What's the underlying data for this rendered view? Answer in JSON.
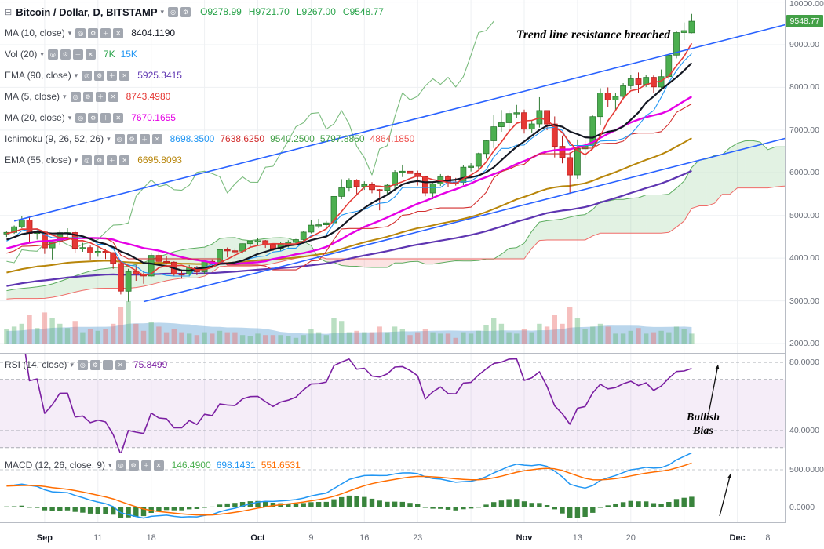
{
  "header": {
    "collapse_icon": "⊟",
    "symbol_title": "Bitcoin / Dollar, D, BITSTAMP",
    "ohlc": {
      "o": "O9278.99",
      "h": "H9721.70",
      "l": "L9267.00",
      "c": "C9548.77"
    },
    "ohlc_color": "#26a248"
  },
  "icons": {
    "dropdown": "▾",
    "box_glyphs": [
      "◎",
      "⚙",
      "＋",
      "✕"
    ]
  },
  "legend_indicators": [
    {
      "label": "MA (10, close)",
      "values": [
        {
          "text": "8404.1190",
          "color": "#131722"
        }
      ]
    },
    {
      "label": "Vol (20)",
      "values": [
        {
          "text": "7K",
          "color": "#26a248"
        },
        {
          "text": "15K",
          "color": "#2196f3"
        }
      ]
    },
    {
      "label": "EMA (90, close)",
      "values": [
        {
          "text": "5925.3415",
          "color": "#5e35b1"
        }
      ]
    },
    {
      "label": "MA (5, close)",
      "values": [
        {
          "text": "8743.4980",
          "color": "#e53935"
        }
      ]
    },
    {
      "label": "MA (20, close)",
      "values": [
        {
          "text": "7670.1655",
          "color": "#e500e5"
        }
      ]
    },
    {
      "label": "Ichimoku (9, 26, 52, 26)",
      "values": [
        {
          "text": "8698.3500",
          "color": "#2196f3"
        },
        {
          "text": "7638.6250",
          "color": "#d32f2f"
        },
        {
          "text": "9540.2500",
          "color": "#43a047"
        },
        {
          "text": "5797.8850",
          "color": "#43a047"
        },
        {
          "text": "4864.1850",
          "color": "#ef5350"
        }
      ]
    },
    {
      "label": "EMA (55, close)",
      "values": [
        {
          "text": "6695.8093",
          "color": "#b8860b"
        }
      ]
    }
  ],
  "rsi_pane": {
    "label": "RSI (14, close)",
    "values": [
      {
        "text": "75.8499",
        "color": "#7b1fa2"
      }
    ]
  },
  "macd_pane": {
    "label": "MACD (12, 26, close, 9)",
    "values": [
      {
        "text": "146.4900",
        "color": "#4caf50"
      },
      {
        "text": "698.1431",
        "color": "#2196f3"
      },
      {
        "text": "551.6531",
        "color": "#ff6d00"
      }
    ]
  },
  "annotations": {
    "trend_note": "Trend line resistance breached",
    "rsi_note_1": "Bullish",
    "rsi_note_2": "Bias"
  },
  "axis": {
    "price_ticks": [
      10000,
      9000,
      8000,
      7000,
      6000,
      5000,
      4000,
      3000,
      2000
    ],
    "last_price": "9548.77",
    "badge_color": "#43a047",
    "rsi_ticks": [
      80,
      40
    ],
    "macd_ticks": [
      500,
      0
    ],
    "time_labels": [
      {
        "i": 5,
        "text": "Sep",
        "month": true
      },
      {
        "i": 12,
        "text": "11"
      },
      {
        "i": 19,
        "text": "18"
      },
      {
        "i": 33,
        "text": "Oct",
        "month": true
      },
      {
        "i": 40,
        "text": "9"
      },
      {
        "i": 47,
        "text": "16"
      },
      {
        "i": 54,
        "text": "23"
      },
      {
        "i": 68,
        "text": "Nov",
        "month": true
      },
      {
        "i": 75,
        "text": "13"
      },
      {
        "i": 82,
        "text": "20"
      },
      {
        "i": 96,
        "text": "Dec",
        "month": true
      },
      {
        "i": 100,
        "text": "8"
      }
    ]
  },
  "chart_data": {
    "type": "candlestick",
    "title": "Bitcoin / Dollar, D, BITSTAMP",
    "interval": "1D",
    "start_date": "2017-08-30",
    "y_axis_range": [
      2000,
      10000
    ],
    "last": {
      "open": 9278.99,
      "high": 9721.7,
      "low": 9267.0,
      "close": 9548.77
    },
    "studies_shown": [
      "MA10",
      "MA5",
      "MA20",
      "EMA55",
      "EMA90",
      "Ichimoku(9,26,52,26)",
      "VolumeMA20",
      "RSI(14)",
      "MACD(12,26,9)"
    ],
    "columns": [
      "open",
      "high",
      "low",
      "close",
      "volume_k"
    ],
    "candles": [
      [
        4565,
        4625,
        4495,
        4603,
        10
      ],
      [
        4603,
        4765,
        4570,
        4734,
        12
      ],
      [
        4734,
        4980,
        4700,
        4892,
        14
      ],
      [
        4892,
        4990,
        4360,
        4580,
        20
      ],
      [
        4580,
        4655,
        4435,
        4613,
        11
      ],
      [
        4613,
        4620,
        4100,
        4240,
        22
      ],
      [
        4240,
        4430,
        3970,
        4376,
        18
      ],
      [
        4376,
        4660,
        4300,
        4597,
        14
      ],
      [
        4597,
        4700,
        4420,
        4599,
        11
      ],
      [
        4599,
        4650,
        4120,
        4230,
        16
      ],
      [
        4230,
        4360,
        4150,
        4247,
        8
      ],
      [
        4247,
        4295,
        3950,
        4122,
        10
      ],
      [
        4122,
        4290,
        4032,
        4161,
        9
      ],
      [
        4161,
        4210,
        3980,
        4130,
        10
      ],
      [
        4130,
        4135,
        3750,
        3875,
        14
      ],
      [
        3875,
        3920,
        3150,
        3226,
        26
      ],
      [
        3226,
        3750,
        2980,
        3682,
        30
      ],
      [
        3682,
        3840,
        3470,
        3625,
        14
      ],
      [
        3625,
        3700,
        3400,
        3582,
        9
      ],
      [
        3582,
        4120,
        3560,
        4065,
        15
      ],
      [
        4065,
        4180,
        3850,
        3924,
        12
      ],
      [
        3924,
        4040,
        3850,
        3905,
        8
      ],
      [
        3905,
        3925,
        3580,
        3631,
        10
      ],
      [
        3631,
        3730,
        3520,
        3630,
        8
      ],
      [
        3630,
        3840,
        3570,
        3792,
        7
      ],
      [
        3792,
        3815,
        3600,
        3682,
        6
      ],
      [
        3682,
        3950,
        3630,
        3926,
        8
      ],
      [
        3926,
        3970,
        3820,
        3892,
        7
      ],
      [
        3892,
        4210,
        3860,
        4197,
        9
      ],
      [
        4197,
        4250,
        4020,
        4174,
        8
      ],
      [
        4174,
        4230,
        4000,
        4163,
        8
      ],
      [
        4163,
        4345,
        4110,
        4338,
        6
      ],
      [
        4338,
        4410,
        4250,
        4403,
        5
      ],
      [
        4403,
        4470,
        4290,
        4409,
        7
      ],
      [
        4409,
        4425,
        4240,
        4317,
        6
      ],
      [
        4317,
        4350,
        4170,
        4229,
        6
      ],
      [
        4229,
        4370,
        4165,
        4328,
        6
      ],
      [
        4328,
        4420,
        4250,
        4370,
        5
      ],
      [
        4370,
        4450,
        4320,
        4435,
        4
      ],
      [
        4435,
        4640,
        4410,
        4610,
        6
      ],
      [
        4610,
        4890,
        4580,
        4772,
        10
      ],
      [
        4772,
        4920,
        4700,
        4781,
        8
      ],
      [
        4781,
        4870,
        4740,
        4826,
        6
      ],
      [
        4826,
        5480,
        4810,
        5446,
        18
      ],
      [
        5446,
        5850,
        5380,
        5647,
        16
      ],
      [
        5647,
        5870,
        5560,
        5831,
        8
      ],
      [
        5831,
        5850,
        5490,
        5678,
        9
      ],
      [
        5678,
        5800,
        5600,
        5725,
        8
      ],
      [
        5725,
        5780,
        5520,
        5605,
        8
      ],
      [
        5605,
        5620,
        5120,
        5590,
        12
      ],
      [
        5590,
        5745,
        5500,
        5708,
        8
      ],
      [
        5708,
        6060,
        5620,
        6011,
        12
      ],
      [
        6011,
        6190,
        5900,
        6036,
        10
      ],
      [
        6036,
        6080,
        5850,
        5983,
        6
      ],
      [
        5983,
        6050,
        5700,
        5910,
        8
      ],
      [
        5910,
        5930,
        5450,
        5527,
        10
      ],
      [
        5527,
        5760,
        5380,
        5740,
        8
      ],
      [
        5740,
        5970,
        5690,
        5904,
        7
      ],
      [
        5904,
        5940,
        5670,
        5780,
        7
      ],
      [
        5780,
        5880,
        5700,
        5775,
        4
      ],
      [
        5775,
        6180,
        5710,
        6130,
        8
      ],
      [
        6130,
        6225,
        6030,
        6153,
        7
      ],
      [
        6153,
        6470,
        6100,
        6450,
        9
      ],
      [
        6450,
        6760,
        6330,
        6750,
        13
      ],
      [
        6750,
        7355,
        6580,
        7078,
        18
      ],
      [
        7078,
        7470,
        6960,
        7172,
        14
      ],
      [
        7172,
        7470,
        6980,
        7388,
        8
      ],
      [
        7388,
        7590,
        7280,
        7407,
        7
      ],
      [
        7407,
        7480,
        6920,
        7022,
        10
      ],
      [
        7022,
        7230,
        6940,
        7144,
        8
      ],
      [
        7144,
        7770,
        7060,
        7459,
        14
      ],
      [
        7459,
        7460,
        7000,
        7143,
        12
      ],
      [
        7143,
        7320,
        6360,
        6618,
        20
      ],
      [
        6618,
        6870,
        6220,
        6357,
        14
      ],
      [
        6357,
        6480,
        5507,
        5950,
        26
      ],
      [
        5950,
        6780,
        5860,
        6559,
        18
      ],
      [
        6559,
        6750,
        6330,
        6635,
        10
      ],
      [
        6635,
        7340,
        6560,
        7315,
        12
      ],
      [
        7315,
        7980,
        7120,
        7871,
        14
      ],
      [
        7871,
        8000,
        7540,
        7708,
        12
      ],
      [
        7708,
        7860,
        7460,
        7790,
        7
      ],
      [
        7790,
        8100,
        7720,
        8036,
        7
      ],
      [
        8036,
        8300,
        7950,
        8200,
        9
      ],
      [
        8200,
        8350,
        7860,
        8071,
        11
      ],
      [
        8071,
        8290,
        8010,
        8235,
        7
      ],
      [
        8235,
        8280,
        7880,
        8010,
        8
      ],
      [
        8010,
        8420,
        7920,
        8253,
        9
      ],
      [
        8253,
        8780,
        8190,
        8754,
        8
      ],
      [
        8754,
        9322,
        8680,
        9284,
        12
      ],
      [
        9284,
        9522,
        9110,
        9330,
        10
      ],
      [
        9278.99,
        9721.7,
        9267,
        9548.77,
        7
      ]
    ],
    "trendlines": [
      {
        "i1": 1,
        "p1": 4870,
        "i2": 103,
        "p2": 9500
      },
      {
        "i1": 18,
        "p1": 2980,
        "i2": 103,
        "p2": 6838
      }
    ],
    "colors": {
      "up": "#4caf50",
      "up_border": "#2d7a31",
      "down": "#e53935",
      "down_border": "#b71c1c",
      "ma5": "#e53935",
      "ma10": "#131722",
      "ma20": "#e500e5",
      "ema55": "#b8860b",
      "ema90": "#5e35b1",
      "tenkan": "#2196f3",
      "kijun": "#d32f2f",
      "span_a": "#43a047",
      "span_b": "#ef5350",
      "cloud_up": "rgba(76,175,80,0.16)",
      "cloud_down": "rgba(239,83,80,0.16)",
      "trendline": "#2962ff",
      "rsi": "#7b1fa2",
      "macd": "#2196f3",
      "signal": "#ff6d00",
      "hist": "#2e7d32",
      "vol_up": "rgba(103,183,120,0.45)",
      "vol_down": "rgba(235,112,110,0.45)",
      "vol_ma": "rgba(129,180,221,0.55)"
    }
  }
}
